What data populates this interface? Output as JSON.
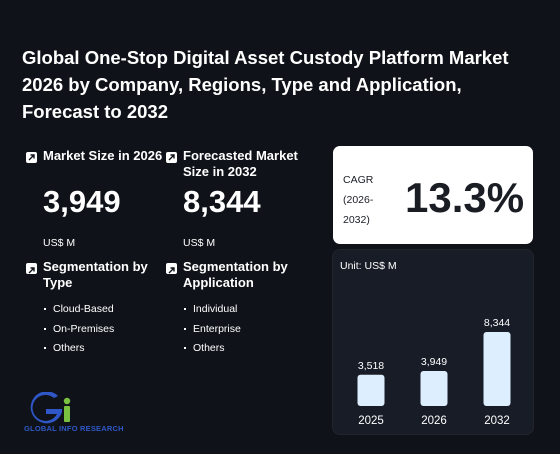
{
  "title": "Global One-Stop Digital Asset Custody Platform Market 2026 by Company, Regions, Type and Application, Forecast to 2032",
  "market_size": {
    "label": "Market Size in 2026",
    "value": "3,949",
    "unit": "US$ M"
  },
  "forecast_size": {
    "label": "Forecasted Market Size in 2032",
    "value": "8,344",
    "unit": "US$ M"
  },
  "seg_type": {
    "label": "Segmentation by Type",
    "items": [
      "Cloud-Based",
      "On-Premises",
      "Others"
    ]
  },
  "seg_app": {
    "label": "Segmentation by Application",
    "items": [
      "Individual",
      "Enterprise",
      "Others"
    ]
  },
  "cagr": {
    "label_line1": "CAGR",
    "label_line2": "(2026-",
    "label_line3": "2032)",
    "value": "13.3%"
  },
  "chart_unit": "Unit: US$ M",
  "logo_text": "GLOBAL INFO RESEARCH",
  "colors": {
    "background": "#0f1319",
    "bar": "#ddeeff",
    "logo_blue": "#2f57c8",
    "logo_green": "#7ac142"
  },
  "chart_data": {
    "type": "bar",
    "categories": [
      "2025",
      "2026",
      "2032"
    ],
    "values": [
      3518,
      3949,
      8344
    ],
    "value_labels": [
      "3,518",
      "3,949",
      "8,344"
    ],
    "ylim": [
      0,
      8344
    ],
    "grid": false
  }
}
